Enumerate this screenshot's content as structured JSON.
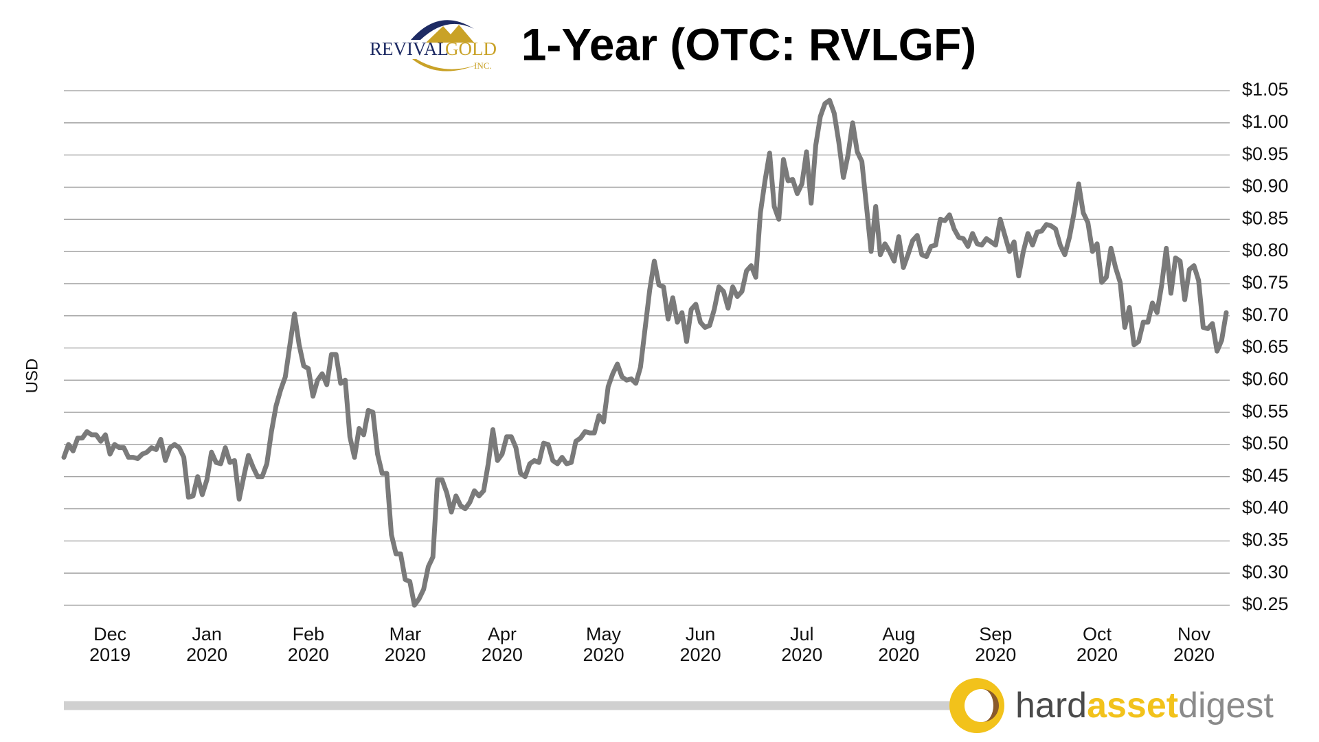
{
  "chart_data": {
    "type": "line",
    "title": "1-Year (OTC: RVLGF)",
    "y_label": "USD",
    "logo": {
      "name_first": "REVIVAL",
      "name_second": "GOLD",
      "suffix": "INC."
    },
    "brand": {
      "part1": "hard",
      "part2": "asset",
      "part3": "digest"
    },
    "color": "#7a7a7a",
    "grid": true,
    "xlim": [
      0,
      252
    ],
    "xticks": [
      {
        "value": 10,
        "label": "Dec 2019"
      },
      {
        "value": 31,
        "label": "Jan 2020"
      },
      {
        "value": 53,
        "label": "Feb 2020"
      },
      {
        "value": 74,
        "label": "Mar 2020"
      },
      {
        "value": 95,
        "label": "Apr 2020"
      },
      {
        "value": 117,
        "label": "May 2020"
      },
      {
        "value": 138,
        "label": "Jun 2020"
      },
      {
        "value": 160,
        "label": "Jul 2020"
      },
      {
        "value": 181,
        "label": "Aug 2020"
      },
      {
        "value": 202,
        "label": "Sep 2020"
      },
      {
        "value": 224,
        "label": "Oct 2020"
      },
      {
        "value": 245,
        "label": "Nov 2020"
      }
    ],
    "ylim": [
      0.25,
      1.05
    ],
    "yticks": [
      {
        "value": 0.25,
        "label": "$0.25"
      },
      {
        "value": 0.3,
        "label": "$0.30"
      },
      {
        "value": 0.35,
        "label": "$0.35"
      },
      {
        "value": 0.4,
        "label": "$0.40"
      },
      {
        "value": 0.45,
        "label": "$0.45"
      },
      {
        "value": 0.5,
        "label": "$0.50"
      },
      {
        "value": 0.55,
        "label": "$0.55"
      },
      {
        "value": 0.6,
        "label": "$0.60"
      },
      {
        "value": 0.65,
        "label": "$0.65"
      },
      {
        "value": 0.7,
        "label": "$0.70"
      },
      {
        "value": 0.75,
        "label": "$0.75"
      },
      {
        "value": 0.8,
        "label": "$0.80"
      },
      {
        "value": 0.85,
        "label": "$0.85"
      },
      {
        "value": 0.9,
        "label": "$0.90"
      },
      {
        "value": 0.95,
        "label": "$0.95"
      },
      {
        "value": 1.0,
        "label": "$1.00"
      },
      {
        "value": 1.05,
        "label": "$1.05"
      }
    ],
    "values": [
      0.48,
      0.5,
      0.49,
      0.51,
      0.51,
      0.52,
      0.515,
      0.515,
      0.505,
      0.515,
      0.485,
      0.5,
      0.495,
      0.495,
      0.48,
      0.48,
      0.478,
      0.485,
      0.488,
      0.495,
      0.492,
      0.508,
      0.475,
      0.495,
      0.5,
      0.495,
      0.48,
      0.418,
      0.42,
      0.45,
      0.422,
      0.445,
      0.488,
      0.472,
      0.47,
      0.495,
      0.472,
      0.475,
      0.415,
      0.45,
      0.483,
      0.465,
      0.45,
      0.45,
      0.47,
      0.52,
      0.56,
      0.585,
      0.605,
      0.655,
      0.703,
      0.655,
      0.622,
      0.618,
      0.575,
      0.6,
      0.61,
      0.593,
      0.64,
      0.64,
      0.595,
      0.6,
      0.512,
      0.48,
      0.525,
      0.515,
      0.553,
      0.55,
      0.485,
      0.455,
      0.455,
      0.36,
      0.33,
      0.33,
      0.29,
      0.287,
      0.25,
      0.26,
      0.275,
      0.31,
      0.325,
      0.445,
      0.445,
      0.425,
      0.395,
      0.42,
      0.405,
      0.4,
      0.41,
      0.428,
      0.42,
      0.428,
      0.47,
      0.523,
      0.475,
      0.485,
      0.512,
      0.512,
      0.495,
      0.455,
      0.45,
      0.47,
      0.475,
      0.472,
      0.502,
      0.5,
      0.475,
      0.47,
      0.48,
      0.47,
      0.472,
      0.505,
      0.51,
      0.52,
      0.518,
      0.518,
      0.545,
      0.535,
      0.59,
      0.61,
      0.625,
      0.605,
      0.6,
      0.602,
      0.595,
      0.62,
      0.68,
      0.74,
      0.785,
      0.748,
      0.745,
      0.695,
      0.728,
      0.69,
      0.705,
      0.66,
      0.71,
      0.718,
      0.69,
      0.682,
      0.685,
      0.71,
      0.745,
      0.738,
      0.712,
      0.745,
      0.73,
      0.738,
      0.77,
      0.778,
      0.76,
      0.86,
      0.91,
      0.953,
      0.87,
      0.85,
      0.943,
      0.91,
      0.912,
      0.89,
      0.905,
      0.955,
      0.875,
      0.965,
      1.01,
      1.03,
      1.035,
      1.015,
      0.97,
      0.915,
      0.95,
      1.0,
      0.955,
      0.94,
      0.87,
      0.8,
      0.87,
      0.795,
      0.812,
      0.8,
      0.785,
      0.823,
      0.775,
      0.795,
      0.817,
      0.825,
      0.795,
      0.792,
      0.808,
      0.81,
      0.85,
      0.848,
      0.857,
      0.835,
      0.822,
      0.82,
      0.808,
      0.828,
      0.812,
      0.81,
      0.82,
      0.815,
      0.81,
      0.85,
      0.825,
      0.8,
      0.815,
      0.762,
      0.8,
      0.828,
      0.81,
      0.83,
      0.832,
      0.842,
      0.84,
      0.835,
      0.81,
      0.795,
      0.822,
      0.86,
      0.905,
      0.86,
      0.845,
      0.8,
      0.812,
      0.752,
      0.76,
      0.805,
      0.775,
      0.752,
      0.682,
      0.713,
      0.655,
      0.66,
      0.69,
      0.69,
      0.72,
      0.705,
      0.748,
      0.805,
      0.735,
      0.79,
      0.785,
      0.725,
      0.772,
      0.778,
      0.755,
      0.682,
      0.68,
      0.688,
      0.645,
      0.662,
      0.705
    ]
  }
}
